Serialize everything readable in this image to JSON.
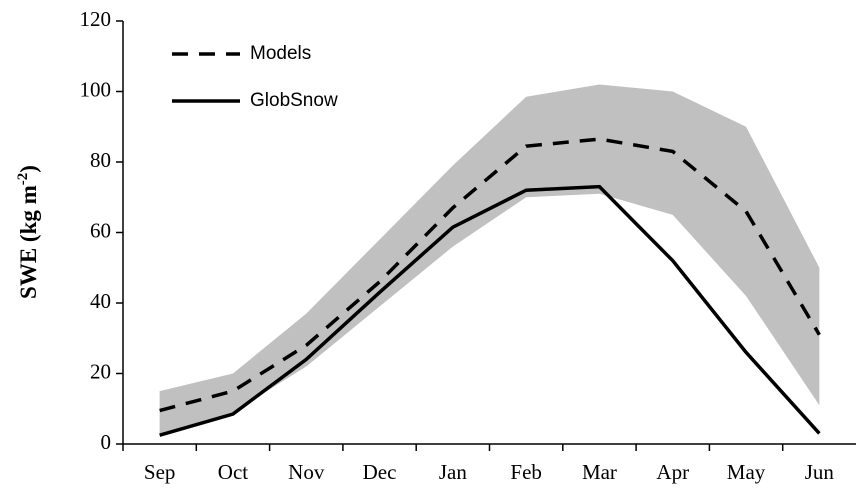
{
  "chart_data": {
    "type": "line",
    "y_label": {
      "text": "SWE (kg m",
      "superscript": "-2",
      "suffix": ")"
    },
    "categories": [
      "Sep",
      "Oct",
      "Nov",
      "Dec",
      "Jan",
      "Feb",
      "Mar",
      "Apr",
      "May",
      "Jun"
    ],
    "band": {
      "color": "#c0c0c0",
      "upper": [
        15,
        20,
        37,
        58,
        79,
        98.5,
        102,
        100,
        90,
        50
      ],
      "lower": [
        3,
        9,
        22,
        39,
        56,
        70,
        71,
        65,
        42,
        11
      ]
    },
    "series": [
      {
        "name": "Models",
        "color": "#000000",
        "dash": true,
        "values": [
          9.5,
          15,
          28,
          46,
          67,
          84.5,
          86.5,
          83,
          66,
          31
        ]
      },
      {
        "name": "GlobSnow",
        "color": "#000000",
        "dash": false,
        "values": [
          2.5,
          8.5,
          24,
          43,
          61.5,
          72,
          73,
          52,
          26,
          3
        ]
      }
    ],
    "ylim": [
      0,
      120
    ],
    "yticks": [
      0,
      20,
      40,
      60,
      80,
      100,
      120
    ],
    "grid": false,
    "legend": "upper left"
  }
}
